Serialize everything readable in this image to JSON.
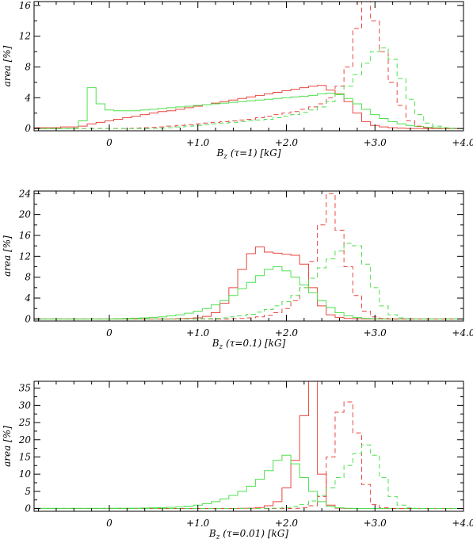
{
  "colors": {
    "red": "#e8473f",
    "green": "#4fe04f",
    "axis": "#000000"
  },
  "chart_data": [
    {
      "type": "line",
      "title": "",
      "xlabel": "B_z (τ=1) [kG]",
      "xlabel_parts": {
        "main": "B",
        "sub": "z",
        "rest": " (τ=1) [kG]"
      },
      "ylabel": "area [%]",
      "xlim": [
        -0.85,
        4.0
      ],
      "ylim": [
        -0.3,
        16.5
      ],
      "xticks": [
        0,
        1,
        2,
        3,
        4
      ],
      "xtick_labels": [
        "0",
        "+1.0",
        "+2.0",
        "+3.0",
        "+4.0"
      ],
      "yticks": [
        0,
        4,
        8,
        12,
        16
      ],
      "ytick_labels": [
        "0",
        "4",
        "8",
        "12",
        "16"
      ],
      "grid": false,
      "bins": {
        "start": -0.85,
        "step": 0.1
      },
      "series": [
        {
          "color": "red",
          "dash": "solid",
          "values": [
            0.1,
            0.1,
            0.1,
            0.2,
            0.2,
            0.3,
            0.6,
            0.8,
            1.0,
            1.2,
            1.4,
            1.6,
            1.8,
            2.0,
            2.2,
            2.3,
            2.5,
            2.7,
            2.9,
            3.1,
            3.3,
            3.5,
            3.7,
            3.9,
            4.1,
            4.3,
            4.5,
            4.7,
            4.9,
            5.1,
            5.3,
            5.5,
            5.6,
            5.0,
            4.5,
            3.5,
            2.0,
            0.9,
            0.4,
            0.2,
            0.1,
            0.05,
            0,
            0,
            0,
            0,
            0,
            0,
            0
          ]
        },
        {
          "color": "green",
          "dash": "solid",
          "values": [
            0,
            0,
            0,
            0,
            0,
            1.0,
            5.3,
            3.2,
            2.4,
            2.3,
            2.3,
            2.3,
            2.4,
            2.5,
            2.6,
            2.7,
            2.8,
            2.9,
            3.0,
            3.1,
            3.2,
            3.3,
            3.4,
            3.5,
            3.6,
            3.7,
            3.8,
            3.9,
            4.0,
            4.1,
            4.2,
            4.3,
            4.5,
            4.6,
            4.4,
            3.9,
            3.2,
            2.5,
            1.8,
            1.3,
            0.9,
            0.6,
            0.4,
            0.25,
            0.15,
            0.08,
            0.03,
            0,
            0
          ]
        },
        {
          "color": "red",
          "dash": "dashed",
          "values": [
            0,
            0,
            0,
            0,
            0,
            0,
            0,
            0,
            0,
            0,
            0,
            0.05,
            0.1,
            0.15,
            0.2,
            0.3,
            0.4,
            0.5,
            0.6,
            0.7,
            0.8,
            0.9,
            1.0,
            1.1,
            1.2,
            1.4,
            1.6,
            1.8,
            2.0,
            2.2,
            2.5,
            2.8,
            3.2,
            4.0,
            5.5,
            8.0,
            13.0,
            16.5,
            14.0,
            10.0,
            6.0,
            3.0,
            1.0,
            0.3,
            0.1,
            0,
            0,
            0,
            0
          ]
        },
        {
          "color": "green",
          "dash": "dashed",
          "values": [
            0,
            0,
            0,
            0,
            0,
            0,
            0,
            0,
            0,
            0,
            0,
            0,
            0,
            0,
            0.05,
            0.1,
            0.2,
            0.3,
            0.4,
            0.5,
            0.6,
            0.7,
            0.8,
            0.9,
            1.0,
            1.1,
            1.2,
            1.4,
            1.6,
            1.8,
            2.1,
            2.4,
            2.8,
            3.5,
            4.5,
            5.5,
            7.0,
            8.5,
            10.0,
            10.5,
            9.0,
            6.5,
            3.8,
            1.8,
            0.7,
            0.3,
            0.1,
            0.05,
            0
          ]
        }
      ]
    },
    {
      "type": "line",
      "title": "",
      "xlabel": "B_z (τ=0.1) [kG]",
      "xlabel_parts": {
        "main": "B",
        "sub": "z",
        "rest": " (τ=0.1) [kG]"
      },
      "ylabel": "area [%]",
      "xlim": [
        -0.85,
        4.0
      ],
      "ylim": [
        -0.4,
        24.5
      ],
      "xticks": [
        0,
        1,
        2,
        3,
        4
      ],
      "xtick_labels": [
        "0",
        "+1.0",
        "+2.0",
        "+3.0",
        "+4.0"
      ],
      "yticks": [
        0,
        4,
        8,
        12,
        16,
        20,
        24
      ],
      "ytick_labels": [
        "0",
        "4",
        "8",
        "12",
        "16",
        "20",
        "24"
      ],
      "grid": false,
      "bins": {
        "start": -0.85,
        "step": 0.1
      },
      "series": [
        {
          "color": "red",
          "dash": "solid",
          "values": [
            0,
            0,
            0,
            0,
            0,
            0,
            0,
            0,
            0,
            0,
            0,
            0,
            0,
            0,
            0,
            0,
            0.05,
            0.1,
            0.2,
            0.5,
            1.2,
            3.0,
            6.0,
            9.5,
            12.5,
            13.8,
            12.8,
            12.6,
            12.4,
            12.2,
            10.5,
            6.0,
            2.5,
            0.8,
            0.3,
            0.1,
            0.05,
            0,
            0,
            0,
            0,
            0,
            0,
            0,
            0,
            0,
            0,
            0,
            0
          ]
        },
        {
          "color": "green",
          "dash": "solid",
          "values": [
            0,
            0,
            0,
            0,
            0,
            0,
            0,
            0,
            0,
            0.05,
            0.1,
            0.15,
            0.2,
            0.3,
            0.4,
            0.6,
            0.8,
            1.1,
            1.5,
            2.0,
            2.7,
            3.5,
            4.5,
            5.8,
            7.0,
            8.3,
            9.5,
            10.0,
            9.2,
            8.0,
            6.5,
            5.0,
            3.5,
            2.2,
            1.2,
            0.6,
            0.3,
            0.1,
            0.05,
            0,
            0,
            0,
            0,
            0,
            0,
            0,
            0,
            0,
            0
          ]
        },
        {
          "color": "red",
          "dash": "dashed",
          "values": [
            0,
            0,
            0,
            0,
            0,
            0,
            0,
            0,
            0,
            0,
            0,
            0,
            0,
            0,
            0,
            0,
            0,
            0,
            0,
            0,
            0,
            0,
            0.05,
            0.1,
            0.2,
            0.4,
            0.7,
            1.2,
            2.0,
            3.5,
            6.0,
            11.0,
            18.0,
            24.0,
            17.0,
            10.0,
            4.5,
            1.5,
            0.4,
            0.1,
            0,
            0,
            0,
            0,
            0,
            0,
            0,
            0,
            0
          ]
        },
        {
          "color": "green",
          "dash": "dashed",
          "values": [
            0,
            0,
            0,
            0,
            0,
            0,
            0,
            0,
            0,
            0,
            0,
            0,
            0,
            0,
            0,
            0,
            0,
            0,
            0,
            0.05,
            0.1,
            0.2,
            0.4,
            0.6,
            0.9,
            1.3,
            1.8,
            2.5,
            3.3,
            4.5,
            6.0,
            7.8,
            9.8,
            11.5,
            13.0,
            14.5,
            14.0,
            10.5,
            6.0,
            2.5,
            0.8,
            0.2,
            0.05,
            0,
            0,
            0,
            0,
            0,
            0
          ]
        }
      ]
    },
    {
      "type": "line",
      "title": "",
      "xlabel": "B_z (τ=0.01) [kG]",
      "xlabel_parts": {
        "main": "B",
        "sub": "z",
        "rest": " (τ=0.01) [kG]"
      },
      "ylabel": "area [%]",
      "xlim": [
        -0.85,
        4.0
      ],
      "ylim": [
        -0.8,
        37
      ],
      "xticks": [
        0,
        1,
        2,
        3,
        4
      ],
      "xtick_labels": [
        "0",
        "+1.0",
        "+2.0",
        "+3.0",
        "+4.0"
      ],
      "yticks": [
        0,
        5,
        10,
        15,
        20,
        25,
        30,
        35
      ],
      "ytick_labels": [
        "0",
        "5",
        "10",
        "15",
        "20",
        "25",
        "30",
        "35"
      ],
      "grid": false,
      "bins": {
        "start": -0.85,
        "step": 0.1
      },
      "series": [
        {
          "color": "red",
          "dash": "solid",
          "values": [
            0,
            0,
            0,
            0,
            0,
            0,
            0,
            0,
            0,
            0,
            0,
            0,
            0,
            0,
            0,
            0,
            0,
            0,
            0,
            0,
            0,
            0,
            0,
            0.05,
            0.1,
            0.3,
            0.8,
            2.0,
            6.0,
            14.0,
            27.0,
            37.0,
            10.0,
            1.0,
            0.1,
            0,
            0,
            0,
            0,
            0,
            0,
            0,
            0,
            0,
            0,
            0,
            0,
            0,
            0
          ]
        },
        {
          "color": "green",
          "dash": "solid",
          "values": [
            0.05,
            0.05,
            0.05,
            0.05,
            0.05,
            0.05,
            0.05,
            0.05,
            0.05,
            0.1,
            0.1,
            0.1,
            0.15,
            0.2,
            0.25,
            0.35,
            0.5,
            0.7,
            1.0,
            1.4,
            2.0,
            2.8,
            3.8,
            5.0,
            6.5,
            8.5,
            11.0,
            14.0,
            15.5,
            13.0,
            9.0,
            5.0,
            2.0,
            0.6,
            0.2,
            0.05,
            0,
            0,
            0,
            0,
            0,
            0,
            0,
            0,
            0,
            0,
            0,
            0,
            0
          ]
        },
        {
          "color": "red",
          "dash": "dashed",
          "values": [
            0,
            0,
            0,
            0,
            0,
            0,
            0,
            0,
            0,
            0,
            0,
            0,
            0,
            0,
            0,
            0,
            0,
            0,
            0,
            0,
            0,
            0,
            0,
            0,
            0,
            0,
            0,
            0,
            0,
            0.05,
            0.2,
            0.8,
            3.5,
            15.0,
            28.0,
            31.0,
            22.0,
            7.0,
            1.2,
            0.2,
            0,
            0,
            0,
            0,
            0,
            0,
            0,
            0,
            0
          ]
        },
        {
          "color": "green",
          "dash": "dashed",
          "values": [
            0,
            0,
            0,
            0,
            0,
            0,
            0,
            0,
            0,
            0,
            0,
            0,
            0,
            0,
            0,
            0,
            0,
            0,
            0,
            0,
            0,
            0,
            0,
            0,
            0,
            0,
            0.05,
            0.1,
            0.3,
            0.6,
            1.2,
            2.2,
            3.8,
            6.0,
            9.0,
            12.5,
            16.0,
            18.5,
            15.5,
            9.0,
            3.5,
            1.0,
            0.2,
            0,
            0,
            0,
            0,
            0,
            0
          ]
        }
      ]
    }
  ]
}
